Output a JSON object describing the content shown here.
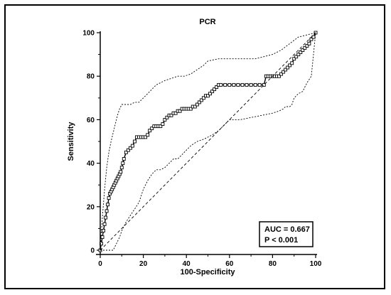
{
  "chart_data": {
    "type": "line",
    "title": "PCR",
    "xlabel": "100-Specificity",
    "ylabel": "Sensitivity",
    "xlim": [
      0,
      100
    ],
    "ylim": [
      0,
      100
    ],
    "xticks": [
      "0",
      "20",
      "40",
      "60",
      "80",
      "100"
    ],
    "yticks": [
      "0",
      "20",
      "40",
      "60",
      "80",
      "100"
    ],
    "grid": false,
    "legend": "none",
    "annotation": [
      "AUC = 0.667",
      "P < 0.001"
    ],
    "series": [
      {
        "style": "solid-square-markers",
        "x": [
          0,
          0.5,
          1,
          1.5,
          2,
          2.5,
          3,
          3.5,
          4,
          4.5,
          5,
          5.5,
          6,
          6.5,
          7,
          7.5,
          8,
          8.5,
          9,
          9.5,
          10,
          10.5,
          11,
          12,
          13,
          14,
          15,
          16,
          17,
          18,
          19,
          20,
          21,
          22,
          23,
          24,
          25,
          26,
          27,
          28,
          29,
          30,
          31,
          32,
          33,
          34,
          35,
          36,
          37,
          38,
          39,
          40,
          41,
          42,
          43,
          44,
          45,
          46,
          47,
          48,
          49,
          50,
          51,
          52,
          53,
          54,
          55,
          56,
          58,
          60,
          62,
          64,
          66,
          68,
          70,
          72,
          74,
          76,
          77,
          78,
          79,
          80,
          81,
          82,
          83,
          84,
          85,
          86,
          87,
          88,
          89,
          90,
          91,
          92,
          93,
          94,
          95,
          96,
          97,
          98,
          99,
          100
        ],
        "y": [
          0,
          3,
          6,
          9,
          12,
          15,
          18,
          21,
          24,
          26,
          27,
          28,
          29,
          30,
          31,
          32,
          33,
          34,
          35,
          36,
          38,
          40,
          42,
          45,
          46,
          47,
          48,
          50,
          52,
          52,
          52,
          52,
          52,
          53,
          55,
          56,
          57,
          57,
          57,
          57,
          58,
          60,
          61,
          62,
          62,
          63,
          63,
          64,
          64,
          65,
          65,
          65,
          65,
          65,
          66,
          66,
          67,
          68,
          69,
          70,
          71,
          71,
          72,
          73,
          74,
          75,
          76,
          76,
          76,
          76,
          76,
          76,
          76,
          76,
          76,
          76,
          76,
          76,
          80,
          80,
          80,
          80,
          80,
          80,
          80,
          81,
          82,
          83,
          84,
          85,
          86,
          88,
          89,
          90,
          91,
          92,
          93,
          94,
          95,
          97,
          98,
          100
        ]
      },
      {
        "style": "dashed",
        "x": [
          0,
          100
        ],
        "y": [
          0,
          100
        ]
      },
      {
        "style": "dotted",
        "x": [
          0,
          1,
          2,
          3,
          4,
          5,
          6,
          7,
          8,
          9,
          10,
          12,
          14,
          16,
          18,
          20,
          22,
          24,
          26,
          28,
          30,
          33,
          36,
          39,
          42,
          45,
          48,
          50,
          55,
          60,
          65,
          68,
          72,
          76,
          80,
          84,
          88,
          92,
          96,
          100
        ],
        "y": [
          0,
          15,
          28,
          38,
          45,
          50,
          54,
          58,
          62,
          65,
          67,
          67,
          67,
          68,
          68,
          70,
          72,
          74,
          76,
          77,
          78,
          79,
          80,
          80,
          81,
          83,
          85,
          87,
          88,
          88,
          88,
          88,
          88,
          89,
          90,
          92,
          95,
          98,
          99,
          100
        ]
      },
      {
        "style": "dotted",
        "x": [
          0,
          3,
          6,
          8,
          9,
          10,
          12,
          14,
          16,
          18,
          20,
          22,
          24,
          26,
          28,
          30,
          32,
          34,
          36,
          38,
          40,
          42,
          45,
          48,
          50,
          52,
          55,
          58,
          60,
          65,
          70,
          75,
          80,
          83,
          85,
          86,
          87,
          88,
          89,
          90,
          92,
          94,
          95,
          96,
          98,
          100
        ],
        "y": [
          0,
          0,
          0,
          4,
          6,
          9,
          13,
          16,
          19,
          22,
          28,
          32,
          35,
          37,
          37,
          38,
          40,
          42,
          42,
          44,
          46,
          48,
          50,
          51,
          52,
          53,
          55,
          58,
          60,
          60,
          61,
          62,
          63,
          64,
          65,
          66,
          66,
          66,
          67,
          70,
          72,
          73,
          75,
          77,
          80,
          100
        ]
      }
    ]
  }
}
